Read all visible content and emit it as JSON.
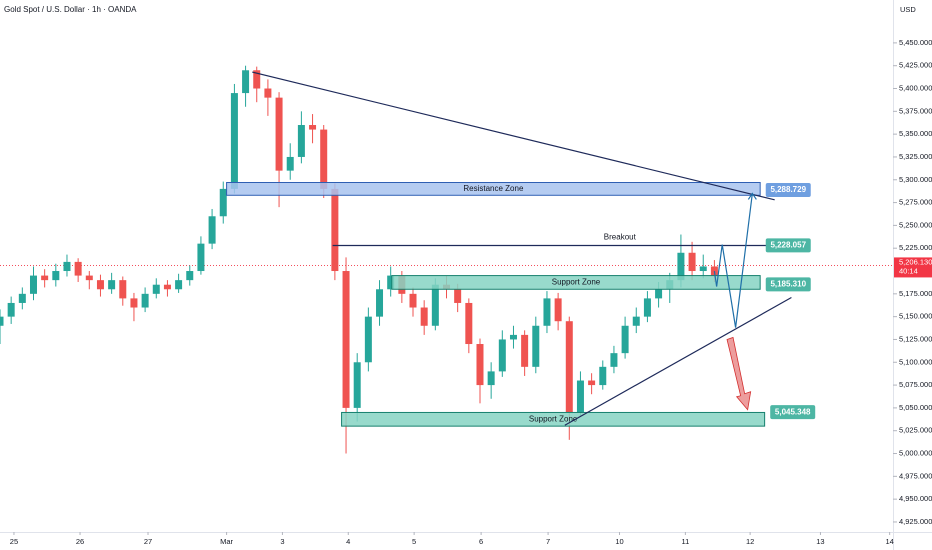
{
  "chart_data": {
    "type": "candlestick",
    "title": "Gold Spot / U.S. Dollar · 1h · OANDA",
    "currency": "USD",
    "up_color": "#26a69a",
    "down_color": "#ef5350",
    "xlim": [
      0,
      80
    ],
    "ylim": [
      4914,
      5497
    ],
    "xticks": [
      {
        "value": 1.25,
        "label": "25"
      },
      {
        "value": 7.17,
        "label": "26"
      },
      {
        "value": 13.26,
        "label": "27"
      },
      {
        "value": 20.3,
        "label": "Mar"
      },
      {
        "value": 25.3,
        "label": "3"
      },
      {
        "value": 31.2,
        "label": "4"
      },
      {
        "value": 37.1,
        "label": "5"
      },
      {
        "value": 43.1,
        "label": "6"
      },
      {
        "value": 49.1,
        "label": "7"
      },
      {
        "value": 55.5,
        "label": "10"
      },
      {
        "value": 61.4,
        "label": "11"
      },
      {
        "value": 67.2,
        "label": "12"
      },
      {
        "value": 73.5,
        "label": "13"
      },
      {
        "value": 79.7,
        "label": "14"
      }
    ],
    "yticks": [
      {
        "value": 4925,
        "label": "4,925.000"
      },
      {
        "value": 4950,
        "label": "4,950.000"
      },
      {
        "value": 4975,
        "label": "4,975.000"
      },
      {
        "value": 5000,
        "label": "5,000.000"
      },
      {
        "value": 5025,
        "label": "5,025.000"
      },
      {
        "value": 5050,
        "label": "5,050.000"
      },
      {
        "value": 5075,
        "label": "5,075.000"
      },
      {
        "value": 5100,
        "label": "5,100.000"
      },
      {
        "value": 5125,
        "label": "5,125.000"
      },
      {
        "value": 5150,
        "label": "5,150.000"
      },
      {
        "value": 5175,
        "label": "5,175.000"
      },
      {
        "value": 5225,
        "label": "5,225.000"
      },
      {
        "value": 5250,
        "label": "5,250.000"
      },
      {
        "value": 5275,
        "label": "5,275.000"
      },
      {
        "value": 5300,
        "label": "5,300.000"
      },
      {
        "value": 5325,
        "label": "5,325.000"
      },
      {
        "value": 5350,
        "label": "5,350.000"
      },
      {
        "value": 5375,
        "label": "5,375.000"
      },
      {
        "value": 5400,
        "label": "5,400.000"
      },
      {
        "value": 5425,
        "label": "5,425.000"
      },
      {
        "value": 5450,
        "label": "5,450.000"
      }
    ],
    "x": [
      0,
      1,
      2,
      3,
      4,
      5,
      6,
      7,
      8,
      9,
      10,
      11,
      12,
      13,
      14,
      15,
      16,
      17,
      18,
      19,
      20,
      21,
      22,
      23,
      24,
      25,
      26,
      27,
      28,
      29,
      30,
      31,
      32,
      33,
      34,
      35,
      36,
      37,
      38,
      39,
      40,
      41,
      42,
      43,
      44,
      45,
      46,
      47,
      48,
      49,
      50,
      51,
      52,
      53,
      54,
      55,
      56,
      57,
      58,
      59,
      60,
      61,
      62,
      63,
      64
    ],
    "candles": [
      [
        5140,
        5158,
        5120,
        5150
      ],
      [
        5150,
        5172,
        5142,
        5165
      ],
      [
        5165,
        5182,
        5158,
        5175
      ],
      [
        5175,
        5205,
        5168,
        5195
      ],
      [
        5195,
        5202,
        5182,
        5190
      ],
      [
        5190,
        5208,
        5183,
        5200
      ],
      [
        5200,
        5218,
        5194,
        5210
      ],
      [
        5210,
        5214,
        5188,
        5195
      ],
      [
        5195,
        5200,
        5180,
        5190
      ],
      [
        5190,
        5196,
        5172,
        5180
      ],
      [
        5180,
        5198,
        5175,
        5190
      ],
      [
        5190,
        5194,
        5162,
        5170
      ],
      [
        5170,
        5176,
        5145,
        5160
      ],
      [
        5160,
        5182,
        5155,
        5175
      ],
      [
        5175,
        5192,
        5170,
        5185
      ],
      [
        5185,
        5190,
        5172,
        5180
      ],
      [
        5180,
        5197,
        5176,
        5190
      ],
      [
        5190,
        5206,
        5184,
        5200
      ],
      [
        5200,
        5238,
        5196,
        5230
      ],
      [
        5230,
        5268,
        5224,
        5260
      ],
      [
        5260,
        5298,
        5252,
        5290
      ],
      [
        5290,
        5405,
        5285,
        5395
      ],
      [
        5395,
        5425,
        5380,
        5420
      ],
      [
        5420,
        5424,
        5385,
        5400
      ],
      [
        5400,
        5410,
        5370,
        5390
      ],
      [
        5390,
        5396,
        5270,
        5310
      ],
      [
        5310,
        5340,
        5300,
        5325
      ],
      [
        5325,
        5375,
        5318,
        5360
      ],
      [
        5360,
        5372,
        5340,
        5355
      ],
      [
        5355,
        5360,
        5280,
        5290
      ],
      [
        5290,
        5296,
        5190,
        5200
      ],
      [
        5200,
        5215,
        5000,
        5050
      ],
      [
        5050,
        5110,
        5035,
        5100
      ],
      [
        5100,
        5160,
        5090,
        5150
      ],
      [
        5150,
        5190,
        5140,
        5180
      ],
      [
        5180,
        5205,
        5172,
        5195
      ],
      [
        5195,
        5200,
        5165,
        5175
      ],
      [
        5175,
        5182,
        5150,
        5160
      ],
      [
        5160,
        5168,
        5130,
        5140
      ],
      [
        5140,
        5192,
        5135,
        5185
      ],
      [
        5185,
        5195,
        5170,
        5180
      ],
      [
        5180,
        5186,
        5155,
        5165
      ],
      [
        5165,
        5170,
        5110,
        5120
      ],
      [
        5120,
        5126,
        5055,
        5075
      ],
      [
        5075,
        5100,
        5060,
        5090
      ],
      [
        5090,
        5135,
        5084,
        5125
      ],
      [
        5125,
        5140,
        5115,
        5130
      ],
      [
        5130,
        5135,
        5085,
        5095
      ],
      [
        5095,
        5150,
        5088,
        5140
      ],
      [
        5140,
        5178,
        5132,
        5170
      ],
      [
        5170,
        5176,
        5135,
        5145
      ],
      [
        5145,
        5150,
        5015,
        5045
      ],
      [
        5045,
        5090,
        5040,
        5080
      ],
      [
        5080,
        5088,
        5065,
        5075
      ],
      [
        5075,
        5102,
        5070,
        5095
      ],
      [
        5095,
        5118,
        5088,
        5110
      ],
      [
        5110,
        5150,
        5104,
        5140
      ],
      [
        5140,
        5160,
        5132,
        5150
      ],
      [
        5150,
        5178,
        5144,
        5170
      ],
      [
        5170,
        5188,
        5160,
        5180
      ],
      [
        5180,
        5198,
        5165,
        5190
      ],
      [
        5190,
        5240,
        5182,
        5220
      ],
      [
        5220,
        5232,
        5190,
        5200
      ],
      [
        5200,
        5218,
        5192,
        5205
      ],
      [
        5205,
        5212,
        5188,
        5195
      ]
    ],
    "zones": [
      {
        "label": "Resistance Zone",
        "x": [
          20.3,
          68.1
        ],
        "y": [
          5283,
          5297
        ],
        "color": "#a8c3ef",
        "border": "#2f5fb3"
      },
      {
        "label": "Support Zone",
        "x": [
          35.1,
          68.1
        ],
        "y": [
          5180,
          5195
        ],
        "color": "#86d3c3",
        "border": "#16806e"
      },
      {
        "label": "Support Zone",
        "x": [
          30.6,
          68.5
        ],
        "y": [
          5030,
          5045
        ],
        "color": "#86d3c3",
        "border": "#16806e"
      }
    ],
    "lines": [
      {
        "label": "Breakout",
        "x": [
          29.8,
          71.4
        ],
        "y": [
          5228,
          5228
        ],
        "color": "#1e2a5a"
      },
      {
        "x": [
          22.6,
          69.4
        ],
        "y": [
          5418,
          5278
        ],
        "color": "#1e2a5a"
      },
      {
        "x": [
          50.6,
          70.9
        ],
        "y": [
          5031,
          5171
        ],
        "color": "#1e2a5a"
      }
    ],
    "projection": {
      "x": [
        64.0,
        64.2,
        64.7,
        65.9,
        67.4
      ],
      "y": [
        5200,
        5183,
        5229,
        5138,
        5285
      ],
      "color": "#1f6fa8"
    },
    "down_arrow": {
      "x": [
        65.4,
        66.8
      ],
      "y": [
        5125,
        5048
      ],
      "color": "#e57373"
    },
    "price_tags": [
      {
        "value": 5288.729,
        "label": "5,288.729",
        "x": 68.6,
        "color": "#6f9fe0"
      },
      {
        "value": 5228.057,
        "label": "5,228.057",
        "x": 68.6,
        "color": "#4db6a4"
      },
      {
        "value": 5185.31,
        "label": "5,185.310",
        "x": 68.6,
        "color": "#4db6a4"
      },
      {
        "value": 5045.348,
        "label": "5,045.348",
        "x": 69.0,
        "color": "#4db6a4"
      }
    ],
    "current_price": {
      "value": 5206.13,
      "label": "5,206.130",
      "countdown": "40:14",
      "color": "#f23645"
    }
  }
}
